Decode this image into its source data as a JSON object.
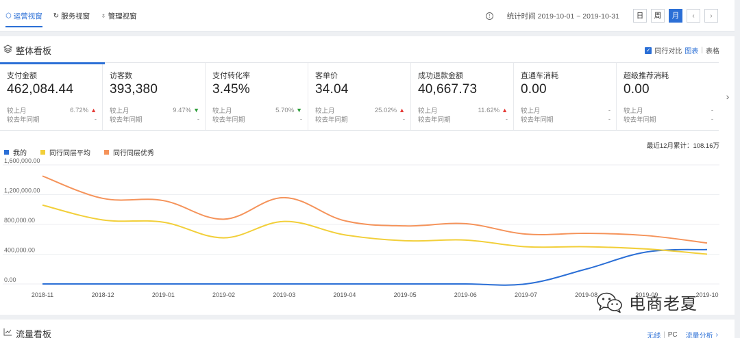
{
  "tabs": [
    {
      "label": "运营视窗",
      "icon": "hexagon-icon"
    },
    {
      "label": "服务视窗",
      "icon": "refresh-icon"
    },
    {
      "label": "管理视窗",
      "icon": "person-icon"
    }
  ],
  "header": {
    "stat_time": "统计时间 2019-10-01 ~ 2019-10-31",
    "periods": [
      "日",
      "周",
      "月"
    ],
    "active_period": "月",
    "prev": "‹",
    "next": "›"
  },
  "panel": {
    "title": "整体看板",
    "compare_label": "同行对比",
    "view_chart": "图表",
    "view_sep": "|",
    "view_table": "表格",
    "cumulative": "最近12月累计：108.16万"
  },
  "metrics": [
    {
      "name": "支付金额",
      "value": "462,084.44",
      "mom_label": "较上月",
      "mom": "6.72%",
      "mom_dir": "up",
      "yoy_label": "较去年同期",
      "yoy": "-"
    },
    {
      "name": "访客数",
      "value": "393,380",
      "mom_label": "较上月",
      "mom": "9.47%",
      "mom_dir": "down",
      "yoy_label": "较去年同期",
      "yoy": "-"
    },
    {
      "name": "支付转化率",
      "value": "3.45%",
      "mom_label": "较上月",
      "mom": "5.70%",
      "mom_dir": "down",
      "yoy_label": "较去年同期",
      "yoy": "-"
    },
    {
      "name": "客单价",
      "value": "34.04",
      "mom_label": "较上月",
      "mom": "25.02%",
      "mom_dir": "up",
      "yoy_label": "较去年同期",
      "yoy": "-"
    },
    {
      "name": "成功退款金额",
      "value": "40,667.73",
      "mom_label": "较上月",
      "mom": "11.62%",
      "mom_dir": "up",
      "yoy_label": "较去年同期",
      "yoy": "-"
    },
    {
      "name": "直通车消耗",
      "value": "0.00",
      "mom_label": "较上月",
      "mom": "-",
      "mom_dir": "none",
      "yoy_label": "较去年同期",
      "yoy": "-"
    },
    {
      "name": "超级推荐消耗",
      "value": "0.00",
      "mom_label": "较上月",
      "mom": "-",
      "mom_dir": "none",
      "yoy_label": "较去年同期",
      "yoy": "-"
    }
  ],
  "colors": {
    "accent": "#2b6fd6",
    "mine": "#2b6fd6",
    "peer_avg": "#f2cf3a",
    "peer_top": "#f5935a",
    "up": "#e53935",
    "down": "#2e9e3a"
  },
  "chart_data": {
    "type": "line",
    "categories": [
      "2018-11",
      "2018-12",
      "2019-01",
      "2019-02",
      "2019-03",
      "2019-04",
      "2019-05",
      "2019-06",
      "2019-07",
      "2019-08",
      "2019-09",
      "2019-10"
    ],
    "series": [
      {
        "name": "我的",
        "color": "#2b6fd6",
        "values": [
          0,
          0,
          0,
          0,
          0,
          0,
          0,
          0,
          0,
          200000,
          430000,
          462084
        ]
      },
      {
        "name": "同行同层平均",
        "color": "#f2cf3a",
        "values": [
          1060000,
          860000,
          830000,
          620000,
          840000,
          660000,
          580000,
          590000,
          500000,
          500000,
          470000,
          400000
        ]
      },
      {
        "name": "同行同层优秀",
        "color": "#f5935a",
        "values": [
          1450000,
          1150000,
          1120000,
          870000,
          1160000,
          850000,
          780000,
          810000,
          670000,
          680000,
          650000,
          550000
        ]
      }
    ],
    "yticks": [
      "1,600,000.00",
      "1,200,000.00",
      "800,000.00",
      "400,000.00",
      "0.00"
    ],
    "ylim": [
      0,
      1600000
    ],
    "grid": true,
    "legend": "top-left"
  },
  "watermark": "电商老夏",
  "panel2": {
    "title": "流量看板",
    "wireless": "无线",
    "sep": "|",
    "pc": "PC",
    "analysis": "流量分析",
    "analysis_arrow": "›"
  }
}
